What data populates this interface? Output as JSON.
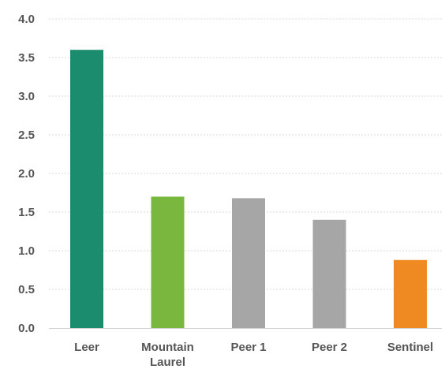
{
  "chart_data": {
    "type": "bar",
    "categories": [
      "Leer",
      "Mountain Laurel",
      "Peer 1",
      "Peer 2",
      "Sentinel"
    ],
    "category_lines": [
      [
        "Leer"
      ],
      [
        "Mountain",
        "Laurel"
      ],
      [
        "Peer 1"
      ],
      [
        "Peer 2"
      ],
      [
        "Sentinel"
      ]
    ],
    "values": [
      3.6,
      1.7,
      1.68,
      1.4,
      0.88
    ],
    "colors": [
      "#1b8c6e",
      "#7ab73f",
      "#a6a6a6",
      "#a6a6a6",
      "#ef8a22"
    ],
    "yticks": [
      "0.0",
      "0.5",
      "1.0",
      "1.5",
      "2.0",
      "2.5",
      "3.0",
      "3.5",
      "4.0"
    ],
    "ylim": [
      0,
      4
    ],
    "title": "",
    "xlabel": "",
    "ylabel": "",
    "grid": true,
    "legend": "none"
  }
}
